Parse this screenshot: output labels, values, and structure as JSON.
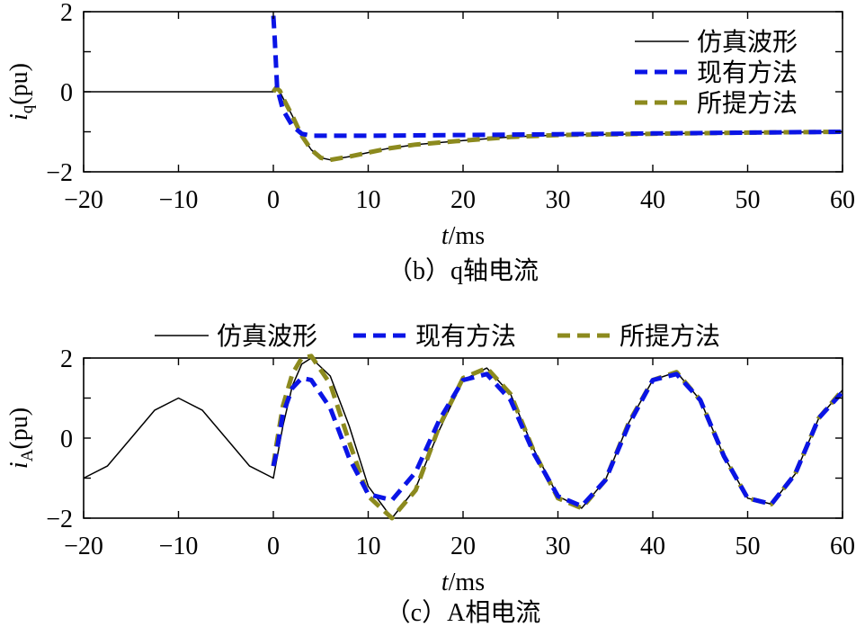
{
  "colors": {
    "simulation": "#000000",
    "existing": "#0a14e6",
    "proposed": "#8c8a1e"
  },
  "legend_labels": {
    "simulation": "仿真波形",
    "existing": "现有方法",
    "proposed": "所提方法"
  },
  "chart_data": [
    {
      "type": "line",
      "caption": "（b）q轴电流",
      "ylabel_main": "i",
      "ylabel_sub": "q",
      "ylabel_suffix": "(pu)",
      "xlabel_main": "t",
      "xlabel_suffix": "/ms",
      "xlim": [
        -20,
        60
      ],
      "ylim": [
        -2,
        2
      ],
      "xticks": [
        -20,
        -10,
        0,
        10,
        20,
        30,
        40,
        50,
        60
      ],
      "yticks": [
        -2,
        0,
        2
      ],
      "legend_position": "top-right",
      "series": [
        {
          "name": "仿真波形",
          "key": "simulation",
          "x": [
            -20,
            0,
            0.0,
            0.5,
            1,
            2,
            3,
            4,
            5,
            6,
            8,
            10,
            12,
            15,
            20,
            25,
            30,
            40,
            50,
            60
          ],
          "y": [
            0,
            0,
            0.05,
            0.08,
            -0.15,
            -0.6,
            -1.1,
            -1.45,
            -1.65,
            -1.7,
            -1.62,
            -1.52,
            -1.42,
            -1.32,
            -1.22,
            -1.13,
            -1.08,
            -1.05,
            -1.02,
            -1.0
          ]
        },
        {
          "name": "现有方法",
          "key": "existing",
          "x": [
            0,
            0.15,
            0.4,
            1,
            2,
            3,
            4,
            5,
            10,
            20,
            30,
            40,
            50,
            60
          ],
          "y": [
            1.9,
            1.3,
            0.1,
            -0.45,
            -0.85,
            -1.05,
            -1.1,
            -1.1,
            -1.1,
            -1.08,
            -1.06,
            -1.04,
            -1.02,
            -1.0
          ]
        },
        {
          "name": "所提方法",
          "key": "proposed",
          "x": [
            0,
            0.3,
            0.7,
            1,
            2,
            3,
            4,
            5,
            6,
            8,
            10,
            12,
            15,
            20,
            25,
            30,
            40,
            50,
            60
          ],
          "y": [
            0,
            0.1,
            0.02,
            -0.15,
            -0.6,
            -1.1,
            -1.45,
            -1.65,
            -1.7,
            -1.62,
            -1.52,
            -1.42,
            -1.32,
            -1.22,
            -1.13,
            -1.08,
            -1.05,
            -1.02,
            -1.0
          ]
        }
      ]
    },
    {
      "type": "line",
      "caption": "（c）A相电流",
      "ylabel_main": "i",
      "ylabel_sub": "A",
      "ylabel_suffix": "(pu)",
      "xlabel_main": "t",
      "xlabel_suffix": "/ms",
      "xlim": [
        -20,
        60
      ],
      "ylim": [
        -2,
        2
      ],
      "xticks": [
        -20,
        -10,
        0,
        10,
        20,
        30,
        40,
        50,
        60
      ],
      "yticks": [
        -2,
        0,
        2
      ],
      "legend_position": "top-outside",
      "series": [
        {
          "name": "仿真波形",
          "key": "simulation",
          "x": [
            -20,
            -17.5,
            -15,
            -12.5,
            -10,
            -7.5,
            -5,
            -2.5,
            0,
            1,
            2,
            3,
            4,
            6,
            8,
            10,
            12.5,
            15,
            17.5,
            20,
            22.5,
            25,
            27.5,
            30,
            32.5,
            35,
            37.5,
            40,
            42.5,
            45,
            47.5,
            50,
            52.5,
            55,
            57.5,
            60
          ],
          "y": [
            -1.0,
            -0.7,
            0.0,
            0.7,
            1.0,
            0.7,
            0.0,
            -0.7,
            -1.0,
            0.3,
            1.3,
            1.85,
            2.0,
            1.55,
            0.3,
            -1.2,
            -2.0,
            -1.25,
            0.2,
            1.45,
            1.75,
            1.1,
            -0.3,
            -1.45,
            -1.75,
            -1.05,
            0.4,
            1.45,
            1.65,
            0.95,
            -0.45,
            -1.5,
            -1.65,
            -0.9,
            0.5,
            1.2
          ]
        },
        {
          "name": "现有方法",
          "key": "existing",
          "x": [
            0,
            0.3,
            1,
            2,
            3,
            4,
            6,
            8,
            10,
            12.5,
            15,
            17.5,
            20,
            22.5,
            25,
            27.5,
            30,
            32.5,
            35,
            37.5,
            40,
            42.5,
            45,
            47.5,
            50,
            52.5,
            55,
            57.5,
            60
          ],
          "y": [
            -0.7,
            -0.4,
            0.6,
            1.25,
            1.5,
            1.45,
            0.75,
            -0.5,
            -1.4,
            -1.55,
            -0.85,
            0.45,
            1.45,
            1.6,
            0.95,
            -0.4,
            -1.45,
            -1.7,
            -1.05,
            0.35,
            1.45,
            1.6,
            0.95,
            -0.45,
            -1.5,
            -1.65,
            -0.9,
            0.5,
            1.15
          ]
        },
        {
          "name": "所提方法",
          "key": "proposed",
          "x": [
            0,
            0.3,
            1,
            2,
            3,
            4,
            6,
            8,
            10,
            12.5,
            15,
            17.5,
            20,
            22.5,
            25,
            27.5,
            30,
            32.5,
            35,
            37.5,
            40,
            42.5,
            45,
            47.5,
            50,
            52.5,
            55,
            57.5,
            60
          ],
          "y": [
            -0.7,
            -0.2,
            0.8,
            1.6,
            2.0,
            2.05,
            1.35,
            -0.1,
            -1.45,
            -2.0,
            -1.3,
            0.3,
            1.5,
            1.75,
            1.1,
            -0.35,
            -1.5,
            -1.75,
            -1.05,
            0.4,
            1.45,
            1.65,
            0.95,
            -0.45,
            -1.5,
            -1.65,
            -0.9,
            0.5,
            1.2
          ]
        }
      ]
    }
  ]
}
